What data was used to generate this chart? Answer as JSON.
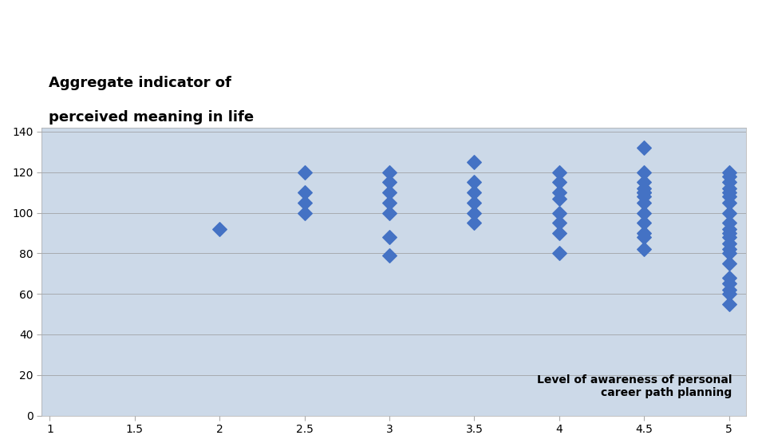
{
  "title_line1": "Aggregate indicator of",
  "title_line2": "perceived meaning in life",
  "xlabel": "Level of awareness of personal\ncareer path planning",
  "xlim": [
    1,
    5
  ],
  "ylim": [
    0,
    140
  ],
  "xticks": [
    1,
    1.5,
    2,
    2.5,
    3,
    3.5,
    4,
    4.5,
    5
  ],
  "yticks": [
    0,
    20,
    40,
    60,
    80,
    100,
    120,
    140
  ],
  "background_color": "#ffffff",
  "plot_bg_color": "#ccd9e8",
  "marker_color": "#4472C4",
  "marker_size": 80,
  "data_x": [
    2.0,
    2.5,
    2.5,
    2.5,
    2.5,
    3.0,
    3.0,
    3.0,
    3.0,
    3.0,
    3.0,
    3.0,
    3.5,
    3.5,
    3.5,
    3.5,
    3.5,
    3.5,
    4.0,
    4.0,
    4.0,
    4.0,
    4.0,
    4.0,
    4.0,
    4.0,
    4.5,
    4.5,
    4.5,
    4.5,
    4.5,
    4.5,
    4.5,
    4.5,
    4.5,
    4.5,
    4.5,
    4.5,
    4.5,
    5.0,
    5.0,
    5.0,
    5.0,
    5.0,
    5.0,
    5.0,
    5.0,
    5.0,
    5.0,
    5.0,
    5.0,
    5.0,
    5.0,
    5.0,
    5.0,
    5.0,
    5.0,
    5.0,
    5.0,
    5.0
  ],
  "data_y": [
    92,
    100,
    105,
    110,
    120,
    79,
    88,
    100,
    105,
    110,
    115,
    120,
    95,
    100,
    105,
    110,
    115,
    125,
    80,
    90,
    95,
    100,
    107,
    110,
    115,
    120,
    82,
    88,
    90,
    95,
    100,
    105,
    108,
    110,
    110,
    112,
    115,
    120,
    132,
    55,
    60,
    62,
    65,
    68,
    75,
    80,
    82,
    85,
    88,
    90,
    92,
    95,
    100,
    105,
    108,
    110,
    112,
    115,
    118,
    120
  ]
}
